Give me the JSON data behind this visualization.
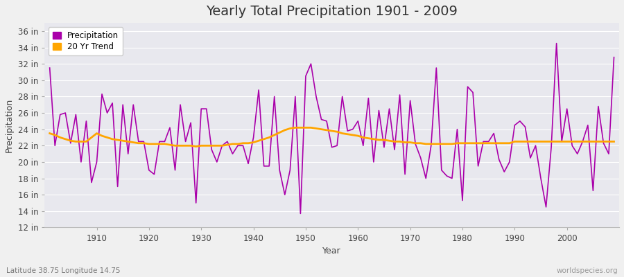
{
  "title": "Yearly Total Precipitation 1901 - 2009",
  "xlabel": "Year",
  "ylabel": "Precipitation",
  "bottom_left_label": "Latitude 38.75 Longitude 14.75",
  "bottom_right_label": "worldspecies.org",
  "precip_color": "#AA00AA",
  "trend_color": "#FFA500",
  "bg_color": "#E8E8EE",
  "fig_bg_color": "#F0F0F0",
  "grid_color": "#FFFFFF",
  "years": [
    1901,
    1902,
    1903,
    1904,
    1905,
    1906,
    1907,
    1908,
    1909,
    1910,
    1911,
    1912,
    1913,
    1914,
    1915,
    1916,
    1917,
    1918,
    1919,
    1920,
    1921,
    1922,
    1923,
    1924,
    1925,
    1926,
    1927,
    1928,
    1929,
    1930,
    1931,
    1932,
    1933,
    1934,
    1935,
    1936,
    1937,
    1938,
    1939,
    1940,
    1941,
    1942,
    1943,
    1944,
    1945,
    1946,
    1947,
    1948,
    1949,
    1950,
    1951,
    1952,
    1953,
    1954,
    1955,
    1956,
    1957,
    1958,
    1959,
    1960,
    1961,
    1962,
    1963,
    1964,
    1965,
    1966,
    1967,
    1968,
    1969,
    1970,
    1971,
    1972,
    1973,
    1974,
    1975,
    1976,
    1977,
    1978,
    1979,
    1980,
    1981,
    1982,
    1983,
    1984,
    1985,
    1986,
    1987,
    1988,
    1989,
    1990,
    1991,
    1992,
    1993,
    1994,
    1995,
    1996,
    1997,
    1998,
    1999,
    2000,
    2001,
    2002,
    2003,
    2004,
    2005,
    2006,
    2007,
    2008,
    2009
  ],
  "precip": [
    31.5,
    22.0,
    25.8,
    26.0,
    22.3,
    25.8,
    20.0,
    25.0,
    17.5,
    20.0,
    28.3,
    26.0,
    27.2,
    17.0,
    27.0,
    21.0,
    27.0,
    22.5,
    22.5,
    19.0,
    18.5,
    22.5,
    22.5,
    24.2,
    19.0,
    27.0,
    22.5,
    24.8,
    15.0,
    26.5,
    26.5,
    21.5,
    20.0,
    22.0,
    22.5,
    21.0,
    22.0,
    22.0,
    19.8,
    23.0,
    28.8,
    19.5,
    19.5,
    28.0,
    19.0,
    16.0,
    19.0,
    28.0,
    13.7,
    30.5,
    32.0,
    28.0,
    25.2,
    25.0,
    21.8,
    22.0,
    28.0,
    23.8,
    24.0,
    25.0,
    22.0,
    27.8,
    20.0,
    26.3,
    21.8,
    26.5,
    21.5,
    28.2,
    18.5,
    27.5,
    22.2,
    20.5,
    18.0,
    22.0,
    31.5,
    19.0,
    18.3,
    18.0,
    24.0,
    15.3,
    29.2,
    28.5,
    19.5,
    22.5,
    22.5,
    23.5,
    20.3,
    18.8,
    20.0,
    24.5,
    25.0,
    24.3,
    20.5,
    22.0,
    18.0,
    14.5,
    21.8,
    34.5,
    22.5,
    26.5,
    22.0,
    21.0,
    22.5,
    24.5,
    16.5,
    26.8,
    22.3,
    21.0,
    32.8
  ],
  "trend": [
    23.5,
    23.3,
    23.0,
    22.8,
    22.6,
    22.5,
    22.5,
    22.5,
    23.0,
    23.5,
    23.2,
    23.0,
    22.8,
    22.7,
    22.6,
    22.5,
    22.4,
    22.3,
    22.3,
    22.2,
    22.2,
    22.2,
    22.2,
    22.1,
    22.0,
    22.0,
    22.0,
    22.0,
    21.9,
    22.0,
    22.0,
    22.0,
    22.0,
    22.0,
    22.1,
    22.2,
    22.2,
    22.3,
    22.3,
    22.4,
    22.6,
    22.8,
    23.0,
    23.3,
    23.6,
    23.9,
    24.1,
    24.2,
    24.2,
    24.2,
    24.2,
    24.1,
    24.0,
    23.9,
    23.8,
    23.7,
    23.5,
    23.4,
    23.3,
    23.2,
    23.0,
    22.9,
    22.8,
    22.7,
    22.7,
    22.6,
    22.5,
    22.5,
    22.4,
    22.4,
    22.3,
    22.3,
    22.2,
    22.2,
    22.2,
    22.2,
    22.2,
    22.2,
    22.3,
    22.3,
    22.3,
    22.3,
    22.3,
    22.3,
    22.3,
    22.3,
    22.3,
    22.3,
    22.3,
    22.5,
    22.5,
    22.5,
    22.5,
    22.5,
    22.5,
    22.5,
    22.5,
    22.5,
    22.5,
    22.5,
    22.5,
    22.5,
    22.5,
    22.5,
    22.5,
    22.5,
    22.5,
    22.5,
    22.5
  ],
  "ylim": [
    12,
    37
  ],
  "yticks": [
    12,
    14,
    16,
    18,
    20,
    22,
    24,
    26,
    28,
    30,
    32,
    34,
    36
  ],
  "ytick_labels": [
    "12 in",
    "14 in",
    "16 in",
    "18 in",
    "20 in",
    "22 in",
    "24 in",
    "26 in",
    "28 in",
    "30 in",
    "32 in",
    "34 in",
    "36 in"
  ],
  "xlim": [
    1900,
    2010
  ],
  "xticks": [
    1910,
    1920,
    1930,
    1940,
    1950,
    1960,
    1970,
    1980,
    1990,
    2000
  ]
}
